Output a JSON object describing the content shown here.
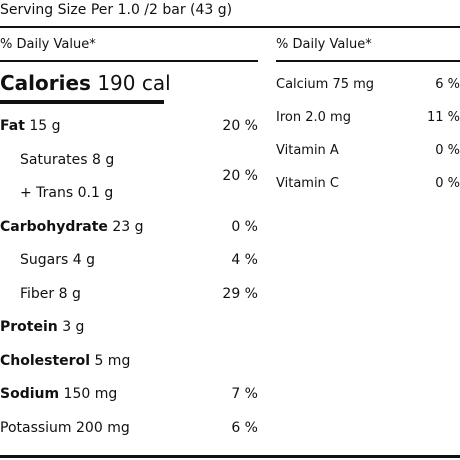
{
  "serving": "Serving Size Per 1.0 /2 bar (43 g)",
  "dv_header": "% Daily Value*",
  "calories": {
    "label": "Calories",
    "value": "190 cal"
  },
  "left_rows": {
    "fat": {
      "label": "Fat",
      "amount": "15 g",
      "pct": "20 %"
    },
    "saturates": {
      "label": "Saturates 8 g"
    },
    "trans": {
      "label": "+ Trans 0.1 g"
    },
    "sat_trans_pct": "20 %",
    "carbohydrate": {
      "label": "Carbohydrate",
      "amount": "23 g",
      "pct": "0 %"
    },
    "sugars": {
      "label": "Sugars 4 g",
      "pct": "4 %"
    },
    "fiber": {
      "label": "Fiber 8 g",
      "pct": "29 %"
    },
    "protein": {
      "label": "Protein",
      "amount": "3 g"
    },
    "cholesterol": {
      "label": "Cholesterol",
      "amount": "5 mg"
    },
    "sodium": {
      "label": "Sodium",
      "amount": "150 mg",
      "pct": "7 %"
    },
    "potassium": {
      "label": "Potassium 200 mg",
      "pct": "6 %"
    }
  },
  "right_rows": [
    {
      "label": "Calcium 75 mg",
      "pct": "6 %"
    },
    {
      "label": "Iron 2.0 mg",
      "pct": "11 %"
    },
    {
      "label": "Vitamin A",
      "pct": "0 %"
    },
    {
      "label": "Vitamin C",
      "pct": "0 %"
    }
  ]
}
